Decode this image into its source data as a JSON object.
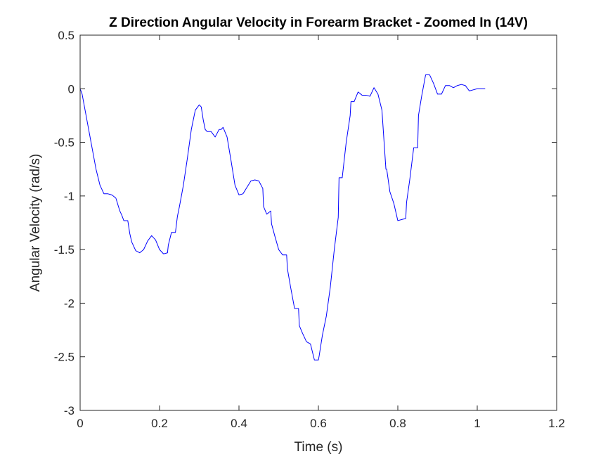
{
  "chart_data": {
    "type": "line",
    "title": "Z Direction Angular Velocity in Forearm Bracket - Zoomed In (14V)",
    "xlabel": "Time (s)",
    "ylabel": "Angular Velocity (rad/s)",
    "xlim": [
      0,
      1.2
    ],
    "ylim": [
      -3,
      0.5
    ],
    "xticks": [
      0,
      0.2,
      0.4,
      0.6,
      0.8,
      1,
      1.2
    ],
    "xtick_labels": [
      "0",
      "0.2",
      "0.4",
      "0.6",
      "0.8",
      "1",
      "1.2"
    ],
    "yticks": [
      0.5,
      0,
      -0.5,
      -1,
      -1.5,
      -2,
      -2.5,
      -3
    ],
    "ytick_labels": [
      "0.5",
      "0",
      "-0.5",
      "-1",
      "-1.5",
      "-2",
      "-2.5",
      "-3"
    ],
    "grid": false,
    "box": true,
    "series": [
      {
        "color": "#0000ff",
        "x": [
          0,
          0.005,
          0.01,
          0.02,
          0.03,
          0.04,
          0.05,
          0.06,
          0.07,
          0.08,
          0.09,
          0.1,
          0.105,
          0.11,
          0.12,
          0.125,
          0.13,
          0.14,
          0.15,
          0.16,
          0.17,
          0.18,
          0.19,
          0.2,
          0.21,
          0.22,
          0.222,
          0.23,
          0.24,
          0.245,
          0.25,
          0.26,
          0.27,
          0.28,
          0.29,
          0.3,
          0.305,
          0.31,
          0.315,
          0.32,
          0.33,
          0.34,
          0.35,
          0.355,
          0.36,
          0.37,
          0.38,
          0.39,
          0.4,
          0.41,
          0.42,
          0.43,
          0.44,
          0.45,
          0.46,
          0.462,
          0.47,
          0.48,
          0.482,
          0.49,
          0.5,
          0.51,
          0.52,
          0.522,
          0.53,
          0.54,
          0.55,
          0.552,
          0.56,
          0.57,
          0.58,
          0.59,
          0.6,
          0.602,
          0.61,
          0.62,
          0.63,
          0.64,
          0.65,
          0.652,
          0.66,
          0.67,
          0.68,
          0.682,
          0.69,
          0.7,
          0.71,
          0.72,
          0.73,
          0.74,
          0.75,
          0.76,
          0.77,
          0.772,
          0.78,
          0.79,
          0.8,
          0.81,
          0.82,
          0.822,
          0.83,
          0.84,
          0.85,
          0.852,
          0.86,
          0.87,
          0.88,
          0.89,
          0.9,
          0.91,
          0.92,
          0.93,
          0.94,
          0.95,
          0.96,
          0.97,
          0.98,
          0.99,
          1.0,
          1.01,
          1.02
        ],
        "y": [
          0,
          -0.05,
          -0.15,
          -0.35,
          -0.55,
          -0.75,
          -0.9,
          -0.98,
          -0.98,
          -0.99,
          -1.02,
          -1.14,
          -1.18,
          -1.23,
          -1.23,
          -1.35,
          -1.43,
          -1.51,
          -1.53,
          -1.5,
          -1.42,
          -1.37,
          -1.41,
          -1.5,
          -1.54,
          -1.53,
          -1.46,
          -1.34,
          -1.34,
          -1.19,
          -1.1,
          -0.9,
          -0.65,
          -0.38,
          -0.2,
          -0.15,
          -0.17,
          -0.29,
          -0.38,
          -0.4,
          -0.4,
          -0.45,
          -0.38,
          -0.38,
          -0.36,
          -0.45,
          -0.67,
          -0.9,
          -0.99,
          -0.98,
          -0.92,
          -0.86,
          -0.85,
          -0.86,
          -0.93,
          -1.1,
          -1.17,
          -1.14,
          -1.26,
          -1.37,
          -1.5,
          -1.55,
          -1.55,
          -1.68,
          -1.85,
          -2.05,
          -2.05,
          -2.21,
          -2.28,
          -2.36,
          -2.38,
          -2.53,
          -2.53,
          -2.49,
          -2.3,
          -2.12,
          -1.85,
          -1.5,
          -1.2,
          -0.83,
          -0.83,
          -0.5,
          -0.25,
          -0.12,
          -0.12,
          -0.03,
          -0.06,
          -0.06,
          -0.07,
          0.01,
          -0.05,
          -0.2,
          -0.75,
          -0.75,
          -0.96,
          -1.07,
          -1.23,
          -1.22,
          -1.21,
          -1.06,
          -0.85,
          -0.55,
          -0.55,
          -0.25,
          -0.07,
          0.13,
          0.13,
          0.05,
          -0.05,
          -0.05,
          0.03,
          0.03,
          0.01,
          0.03,
          0.04,
          0.03,
          -0.02,
          -0.01,
          0.0,
          0.0,
          0.0
        ]
      }
    ]
  }
}
